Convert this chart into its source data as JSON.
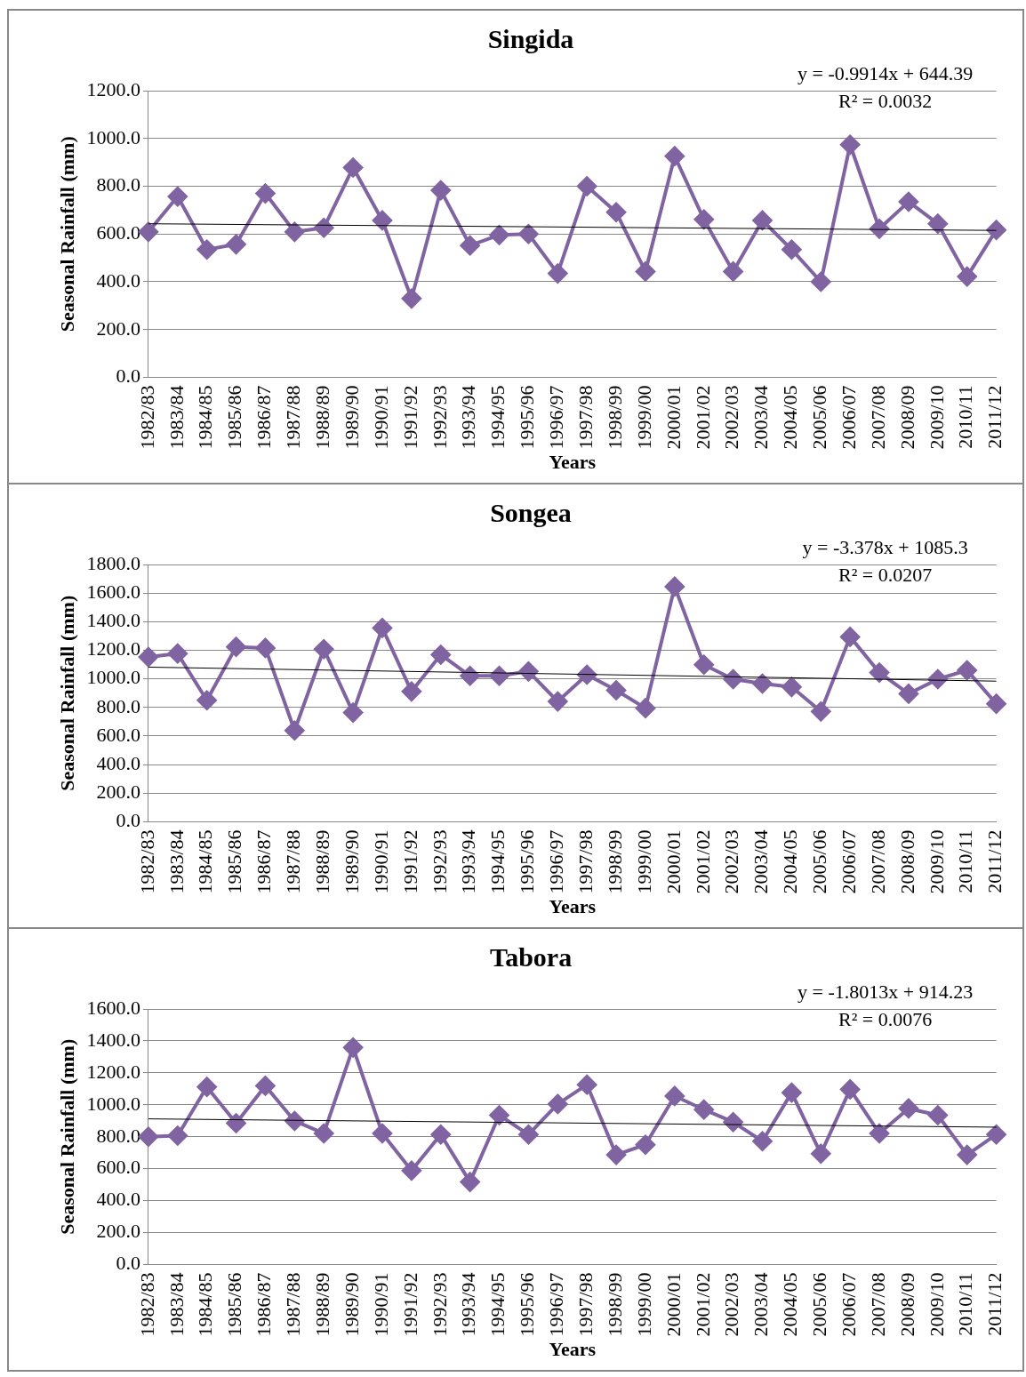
{
  "chart_data": [
    {
      "type": "line",
      "title": "Singida",
      "xlabel": "Years",
      "ylabel": "Seasonal Rainfall (mm)",
      "categories": [
        "1982/83",
        "1983/84",
        "1984/85",
        "1985/86",
        "1986/87",
        "1987/88",
        "1988/89",
        "1989/90",
        "1990/91",
        "1991/92",
        "1992/93",
        "1993/94",
        "1994/95",
        "1995/96",
        "1996/97",
        "1997/98",
        "1998/99",
        "1999/00",
        "2000/01",
        "2001/02",
        "2002/03",
        "2003/04",
        "2004/05",
        "2005/06",
        "2006/07",
        "2007/08",
        "2008/09",
        "2009/10",
        "2010/11",
        "2011/12"
      ],
      "series": [
        {
          "color": "#8064a2",
          "values": [
            609,
            757,
            535,
            557,
            770,
            609,
            626,
            878,
            657,
            330,
            783,
            552,
            596,
            600,
            435,
            800,
            691,
            443,
            926,
            661,
            443,
            657,
            535,
            400,
            974,
            622,
            735,
            643,
            422,
            617
          ]
        },
        {
          "color": "#000000",
          "marker": "none",
          "values": [
            643,
            null,
            null,
            null,
            null,
            null,
            null,
            null,
            null,
            null,
            null,
            null,
            null,
            null,
            null,
            null,
            null,
            null,
            null,
            null,
            null,
            null,
            null,
            null,
            null,
            null,
            null,
            null,
            null,
            615
          ]
        }
      ],
      "ylim": [
        0,
        1200
      ],
      "yticks": [
        {
          "value": 0,
          "label": "0.0"
        },
        {
          "value": 200,
          "label": "200.0"
        },
        {
          "value": 400,
          "label": "400.0"
        },
        {
          "value": 600,
          "label": "600.0"
        },
        {
          "value": 800,
          "label": "800.0"
        },
        {
          "value": 1000,
          "label": "1000.0"
        },
        {
          "value": 1200,
          "label": "1200.0"
        }
      ],
      "grid": "y",
      "marker": "diamond",
      "annotations": [
        "y = -0.9914x + 644.39",
        "R² = 0.0032"
      ]
    },
    {
      "type": "line",
      "title": "Songea",
      "xlabel": "Years",
      "ylabel": "Seasonal Rainfall (mm)",
      "categories": [
        "1982/83",
        "1983/84",
        "1984/85",
        "1985/86",
        "1986/87",
        "1987/88",
        "1988/89",
        "1989/90",
        "1990/91",
        "1991/92",
        "1992/93",
        "1993/94",
        "1994/95",
        "1995/96",
        "1996/97",
        "1997/98",
        "1998/99",
        "1999/00",
        "2000/01",
        "2001/02",
        "2002/03",
        "2003/04",
        "2004/05",
        "2005/06",
        "2006/07",
        "2007/08",
        "2008/09",
        "2009/10",
        "2010/11",
        "2011/12"
      ],
      "series": [
        {
          "color": "#8064a2",
          "values": [
            1153,
            1177,
            850,
            1224,
            1216,
            639,
            1208,
            764,
            1356,
            912,
            1169,
            1021,
            1021,
            1052,
            842,
            1029,
            920,
            795,
            1645,
            1099,
            998,
            967,
            943,
            772,
            1294,
            1044,
            896,
            998,
            1060,
            826
          ]
        },
        {
          "color": "#000000",
          "marker": "none",
          "values": [
            1082,
            null,
            null,
            null,
            null,
            null,
            null,
            null,
            null,
            null,
            null,
            null,
            null,
            null,
            null,
            null,
            null,
            null,
            null,
            null,
            null,
            null,
            null,
            null,
            null,
            null,
            null,
            null,
            null,
            984
          ]
        }
      ],
      "ylim": [
        0,
        1800
      ],
      "yticks": [
        {
          "value": 0,
          "label": "0.0"
        },
        {
          "value": 200,
          "label": "200.0"
        },
        {
          "value": 400,
          "label": "400.0"
        },
        {
          "value": 600,
          "label": "600.0"
        },
        {
          "value": 800,
          "label": "800.0"
        },
        {
          "value": 1000,
          "label": "1000.0"
        },
        {
          "value": 1200,
          "label": "1200.0"
        },
        {
          "value": 1400,
          "label": "1400.0"
        },
        {
          "value": 1600,
          "label": "1600.0"
        },
        {
          "value": 1800,
          "label": "1800.0"
        }
      ],
      "grid": "y",
      "marker": "diamond",
      "annotations": [
        "y = -3.378x + 1085.3",
        "R² = 0.0207"
      ]
    },
    {
      "type": "line",
      "title": "Tabora",
      "xlabel": "Years",
      "ylabel": "Seasonal Rainfall (mm)",
      "categories": [
        "1982/83",
        "1983/84",
        "1984/85",
        "1985/86",
        "1986/87",
        "1987/88",
        "1988/89",
        "1989/90",
        "1990/91",
        "1991/92",
        "1992/93",
        "1993/94",
        "1994/95",
        "1995/96",
        "1996/97",
        "1997/98",
        "1998/99",
        "1999/00",
        "2000/01",
        "2001/02",
        "2002/03",
        "2003/04",
        "2004/05",
        "2005/06",
        "2006/07",
        "2007/08",
        "2008/09",
        "2009/10",
        "2010/11",
        "2011/12"
      ],
      "series": [
        {
          "color": "#8064a2",
          "values": [
            800,
            807,
            1112,
            885,
            1119,
            899,
            821,
            1359,
            821,
            588,
            814,
            517,
            935,
            814,
            1005,
            1126,
            687,
            750,
            1055,
            970,
            892,
            772,
            1076,
            694,
            1097,
            821,
            977,
            935,
            687,
            814
          ]
        },
        {
          "color": "#000000",
          "marker": "none",
          "values": [
            912,
            null,
            null,
            null,
            null,
            null,
            null,
            null,
            null,
            null,
            null,
            null,
            null,
            null,
            null,
            null,
            null,
            null,
            null,
            null,
            null,
            null,
            null,
            null,
            null,
            null,
            null,
            null,
            null,
            860
          ]
        }
      ],
      "ylim": [
        0,
        1600
      ],
      "yticks": [
        {
          "value": 0,
          "label": "0.0"
        },
        {
          "value": 200,
          "label": "200.0"
        },
        {
          "value": 400,
          "label": "400.0"
        },
        {
          "value": 600,
          "label": "600.0"
        },
        {
          "value": 800,
          "label": "800.0"
        },
        {
          "value": 1000,
          "label": "1000.0"
        },
        {
          "value": 1200,
          "label": "1200.0"
        },
        {
          "value": 1400,
          "label": "1400.0"
        },
        {
          "value": 1600,
          "label": "1600.0"
        }
      ],
      "grid": "y",
      "marker": "diamond",
      "annotations": [
        "y = -1.8013x + 914.23",
        "R² = 0.0076"
      ]
    }
  ]
}
